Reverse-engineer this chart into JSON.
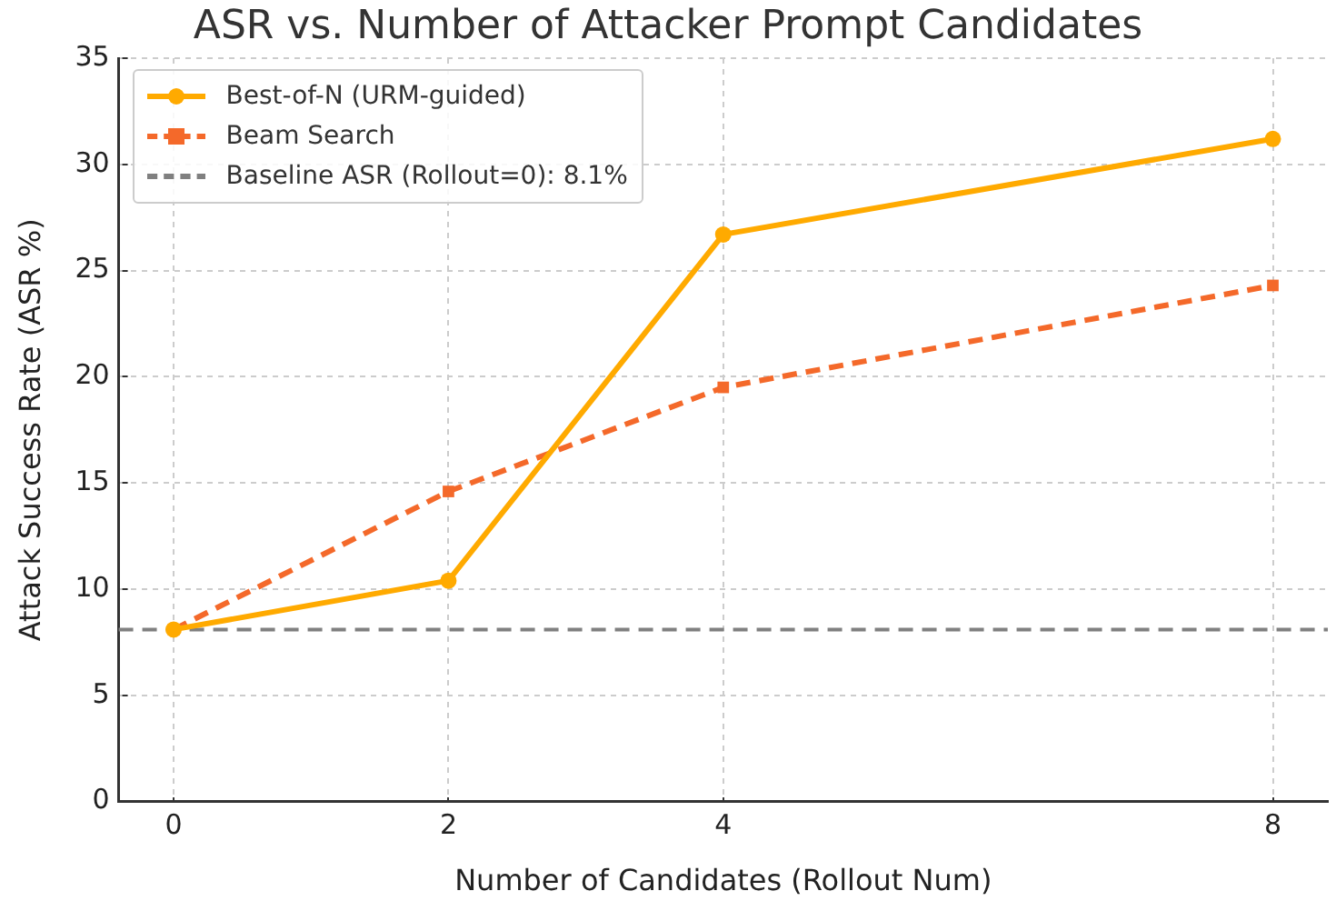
{
  "chart_data": {
    "type": "line",
    "title": "ASR vs. Number of Attacker Prompt Candidates",
    "xlabel": "Number of Candidates (Rollout Num)",
    "ylabel": "Attack Success Rate (ASR %)",
    "x": [
      0,
      2,
      4,
      8
    ],
    "series": [
      {
        "name": "Best-of-N (URM-guided)",
        "color": "#ffaa00",
        "values": [
          8.1,
          10.4,
          26.7,
          31.2
        ],
        "marker": "circle",
        "line_style": "solid"
      },
      {
        "name": "Beam Search",
        "color": "#f4692a",
        "values": [
          8.1,
          14.6,
          19.5,
          24.3
        ],
        "marker": "square",
        "line_style": "dashed"
      }
    ],
    "ref_lines": [
      {
        "axis": "y",
        "value": 8.1,
        "label": "Baseline ASR (Rollout=0): 8.1%",
        "color": "#808080",
        "line_style": "dashed"
      }
    ],
    "xlim": [
      -0.4,
      8.4
    ],
    "xticks": [
      0,
      2,
      4,
      8
    ],
    "ylim": [
      0,
      35
    ],
    "yticks": [
      0,
      5,
      10,
      15,
      20,
      25,
      30,
      35
    ],
    "grid": true,
    "legend": "top left"
  }
}
